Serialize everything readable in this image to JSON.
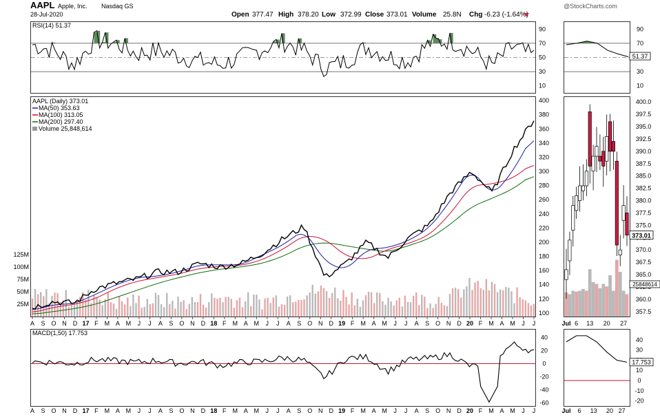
{
  "header": {
    "symbol": "AAPL",
    "company": "Apple, Inc.",
    "exchange": "Nasdaq GS",
    "date": "28-Jul-2020",
    "watermark": "@StockCharts.com",
    "open_label": "Open",
    "open": "377.47",
    "high_label": "High",
    "high": "378.20",
    "low_label": "Low",
    "low": "372.99",
    "close_label": "Close",
    "close": "373.01",
    "volume_label": "Volume",
    "volume": "25.8N",
    "chg_label": "Chg",
    "chg": "-6.23 (-1.64%)"
  },
  "colors": {
    "price": "#000000",
    "ma50": "#1a1aa6",
    "ma100": "#c8102e",
    "ma200": "#0e6b0e",
    "volume_up": "#b9b9b9",
    "volume_down": "#e7a6a6",
    "rsi_fill": "#5f8a5f",
    "macd_zero": "#b01530",
    "down_candle": "#c81e42"
  },
  "chart_data": [
    {
      "type": "line",
      "panel": "RSI",
      "legend": "RSI(14) 51.37",
      "ylim": [
        0,
        100
      ],
      "yticks": [
        "90",
        "70",
        "50",
        "30",
        "10"
      ],
      "reference_lines": [
        70,
        50,
        30
      ],
      "last_value_label": "51.37",
      "x": [
        "Aug-2016",
        "Oct-2016",
        "Dec-2016",
        "Feb-2017",
        "Apr-2017",
        "Jun-2017",
        "Aug-2017",
        "Oct-2017",
        "Dec-2017",
        "Feb-2018",
        "Apr-2018",
        "Jun-2018",
        "Aug-2018",
        "Oct-2018",
        "Dec-2018",
        "Feb-2019",
        "Apr-2019",
        "Jun-2019",
        "Aug-2019",
        "Oct-2019",
        "Dec-2019",
        "Feb-2020",
        "Apr-2020",
        "Jun-2020",
        "Jul-2020"
      ],
      "values": [
        68,
        60,
        40,
        75,
        70,
        55,
        60,
        52,
        45,
        40,
        50,
        62,
        72,
        60,
        35,
        45,
        65,
        52,
        45,
        70,
        74,
        60,
        38,
        66,
        51
      ]
    },
    {
      "type": "line",
      "panel": "Price",
      "title": "AAPL (Daily) 373.01",
      "legend": [
        "MA(50) 353.63",
        "MA(100) 313.05",
        "MA(200) 297.40",
        "Volume 25,848,614"
      ],
      "ylim": [
        95,
        405
      ],
      "yticks": [
        "400",
        "380",
        "360",
        "340",
        "320",
        "300",
        "280",
        "260",
        "240",
        "220",
        "200",
        "180",
        "160",
        "140",
        "120",
        "100"
      ],
      "volume_yticks": [
        "125M",
        "100M",
        "75M",
        "50M",
        "25M"
      ],
      "x_ticks": [
        "A",
        "S",
        "O",
        "N",
        "D",
        "17",
        "F",
        "M",
        "A",
        "M",
        "J",
        "J",
        "A",
        "S",
        "O",
        "N",
        "D",
        "18",
        "F",
        "M",
        "A",
        "M",
        "J",
        "J",
        "A",
        "S",
        "O",
        "N",
        "D",
        "19",
        "F",
        "M",
        "A",
        "M",
        "J",
        "J",
        "A",
        "S",
        "O",
        "N",
        "D",
        "20",
        "F",
        "M",
        "A",
        "M",
        "J",
        "J"
      ],
      "last_value_label": "373.01",
      "x": [
        "Aug-2016",
        "Oct-2016",
        "Dec-2016",
        "Feb-2017",
        "Apr-2017",
        "Jun-2017",
        "Aug-2017",
        "Oct-2017",
        "Dec-2017",
        "Feb-2018",
        "Apr-2018",
        "Jun-2018",
        "Aug-2018",
        "Oct-2018",
        "Dec-2018",
        "Feb-2019",
        "Apr-2019",
        "Jun-2019",
        "Aug-2019",
        "Oct-2019",
        "Dec-2019",
        "Feb-2020",
        "Apr-2020",
        "Jun-2020",
        "Jul-2020"
      ],
      "series": [
        {
          "name": "AAPL",
          "values": [
            108,
            116,
            114,
            134,
            142,
            148,
            158,
            158,
            170,
            165,
            170,
            184,
            205,
            222,
            150,
            170,
            200,
            178,
            206,
            225,
            270,
            300,
            270,
            330,
            373
          ]
        },
        {
          "name": "MA(50)",
          "values": [
            103,
            112,
            113,
            126,
            140,
            150,
            152,
            158,
            168,
            168,
            168,
            182,
            196,
            218,
            172,
            160,
            190,
            192,
            202,
            220,
            258,
            305,
            265,
            300,
            354
          ]
        },
        {
          "name": "MA(100)",
          "values": [
            100,
            108,
            112,
            120,
            135,
            145,
            150,
            155,
            163,
            166,
            167,
            175,
            190,
            210,
            205,
            180,
            175,
            190,
            198,
            210,
            240,
            280,
            282,
            290,
            313
          ]
        },
        {
          "name": "MA(200)",
          "values": [
            98,
            102,
            106,
            112,
            122,
            132,
            142,
            150,
            157,
            162,
            165,
            170,
            180,
            195,
            200,
            195,
            190,
            186,
            195,
            205,
            225,
            250,
            262,
            275,
            297
          ]
        }
      ],
      "volume_values": [
        35,
        40,
        30,
        40,
        25,
        28,
        30,
        25,
        28,
        35,
        30,
        28,
        35,
        45,
        50,
        40,
        30,
        32,
        35,
        30,
        35,
        60,
        55,
        40,
        30
      ]
    },
    {
      "type": "line",
      "panel": "MACD",
      "legend": "MACD(1,50) 17.753",
      "ylim": [
        -65,
        52
      ],
      "yticks": [
        "40",
        "20",
        "0",
        "-20",
        "-40",
        "-60"
      ],
      "reference_lines": [
        0
      ],
      "last_value_label": "17.753",
      "x": [
        "Aug-2016",
        "Oct-2016",
        "Dec-2016",
        "Feb-2017",
        "Apr-2017",
        "Jun-2017",
        "Aug-2017",
        "Oct-2017",
        "Dec-2017",
        "Feb-2018",
        "Apr-2018",
        "Jun-2018",
        "Aug-2018",
        "Oct-2018",
        "Dec-2018",
        "Feb-2019",
        "Apr-2019",
        "Jun-2019",
        "Aug-2019",
        "Oct-2019",
        "Dec-2019",
        "Feb-2020",
        "Apr-2020",
        "Jun-2020",
        "Jul-2020"
      ],
      "values": [
        3,
        2,
        0,
        6,
        4,
        2,
        5,
        0,
        3,
        -3,
        2,
        3,
        9,
        5,
        -22,
        8,
        10,
        -12,
        6,
        8,
        14,
        -5,
        5,
        30,
        18
      ]
    },
    {
      "type": "line",
      "panel": "RSI (July zoom)",
      "ylim": [
        0,
        100
      ],
      "yticks": [
        "90",
        "70",
        "50",
        "30",
        "10"
      ],
      "last_value_label": "51.37",
      "x": [
        "Jul-1",
        "Jul-6",
        "Jul-13",
        "Jul-20",
        "Jul-23",
        "Jul-27",
        "Jul-28"
      ],
      "values": [
        68,
        70,
        73,
        70,
        60,
        55,
        51
      ]
    },
    {
      "type": "bar",
      "panel": "Price (July zoom)",
      "yticks": [
        "400.0",
        "397.5",
        "395.0",
        "392.5",
        "390.0",
        "387.5",
        "385.0",
        "382.5",
        "380.0",
        "377.5",
        "375.0",
        "372.5",
        "370.0",
        "367.5",
        "365.0",
        "362.5",
        "360.0",
        "357.5"
      ],
      "x_ticks": [
        "Jul",
        "6",
        "13",
        "20",
        "27"
      ],
      "last_value_label": "373.01",
      "volume_label": "25848614",
      "x": [
        "1",
        "2",
        "6",
        "7",
        "8",
        "9",
        "10",
        "13",
        "14",
        "15",
        "16",
        "17",
        "20",
        "21",
        "22",
        "23",
        "24",
        "27",
        "28"
      ],
      "series": [
        {
          "name": "open",
          "values": [
            364.0,
            367.8,
            374.0,
            378.0,
            380.0,
            382.0,
            383.0,
            398.0,
            386.0,
            389.0,
            389.0,
            390.0,
            388.0,
            396.0,
            392.0,
            388.0,
            369.0,
            376.0,
            377.5
          ]
        },
        {
          "name": "close",
          "values": [
            366.0,
            372.0,
            379.0,
            381.0,
            383.0,
            383.0,
            386.0,
            387.0,
            389.0,
            391.0,
            388.0,
            387.0,
            393.0,
            390.0,
            390.0,
            371.0,
            370.0,
            379.0,
            373.0
          ]
        }
      ],
      "volume_values": [
        28,
        26,
        30,
        29,
        30,
        32,
        30,
        55,
        40,
        38,
        33,
        38,
        35,
        48,
        30,
        66,
        52,
        30,
        26
      ]
    },
    {
      "type": "line",
      "panel": "MACD (July zoom)",
      "yticks": [
        "40",
        "30",
        "20",
        "10",
        "0",
        "-10",
        "-20"
      ],
      "x_ticks": [
        "Jul",
        "6",
        "13",
        "20",
        "27"
      ],
      "last_value_label": "17.753",
      "x": [
        "Jul-1",
        "Jul-6",
        "Jul-13",
        "Jul-20",
        "Jul-23",
        "Jul-27",
        "Jul-28"
      ],
      "values": [
        38,
        44,
        44,
        38,
        28,
        20,
        18
      ]
    }
  ]
}
